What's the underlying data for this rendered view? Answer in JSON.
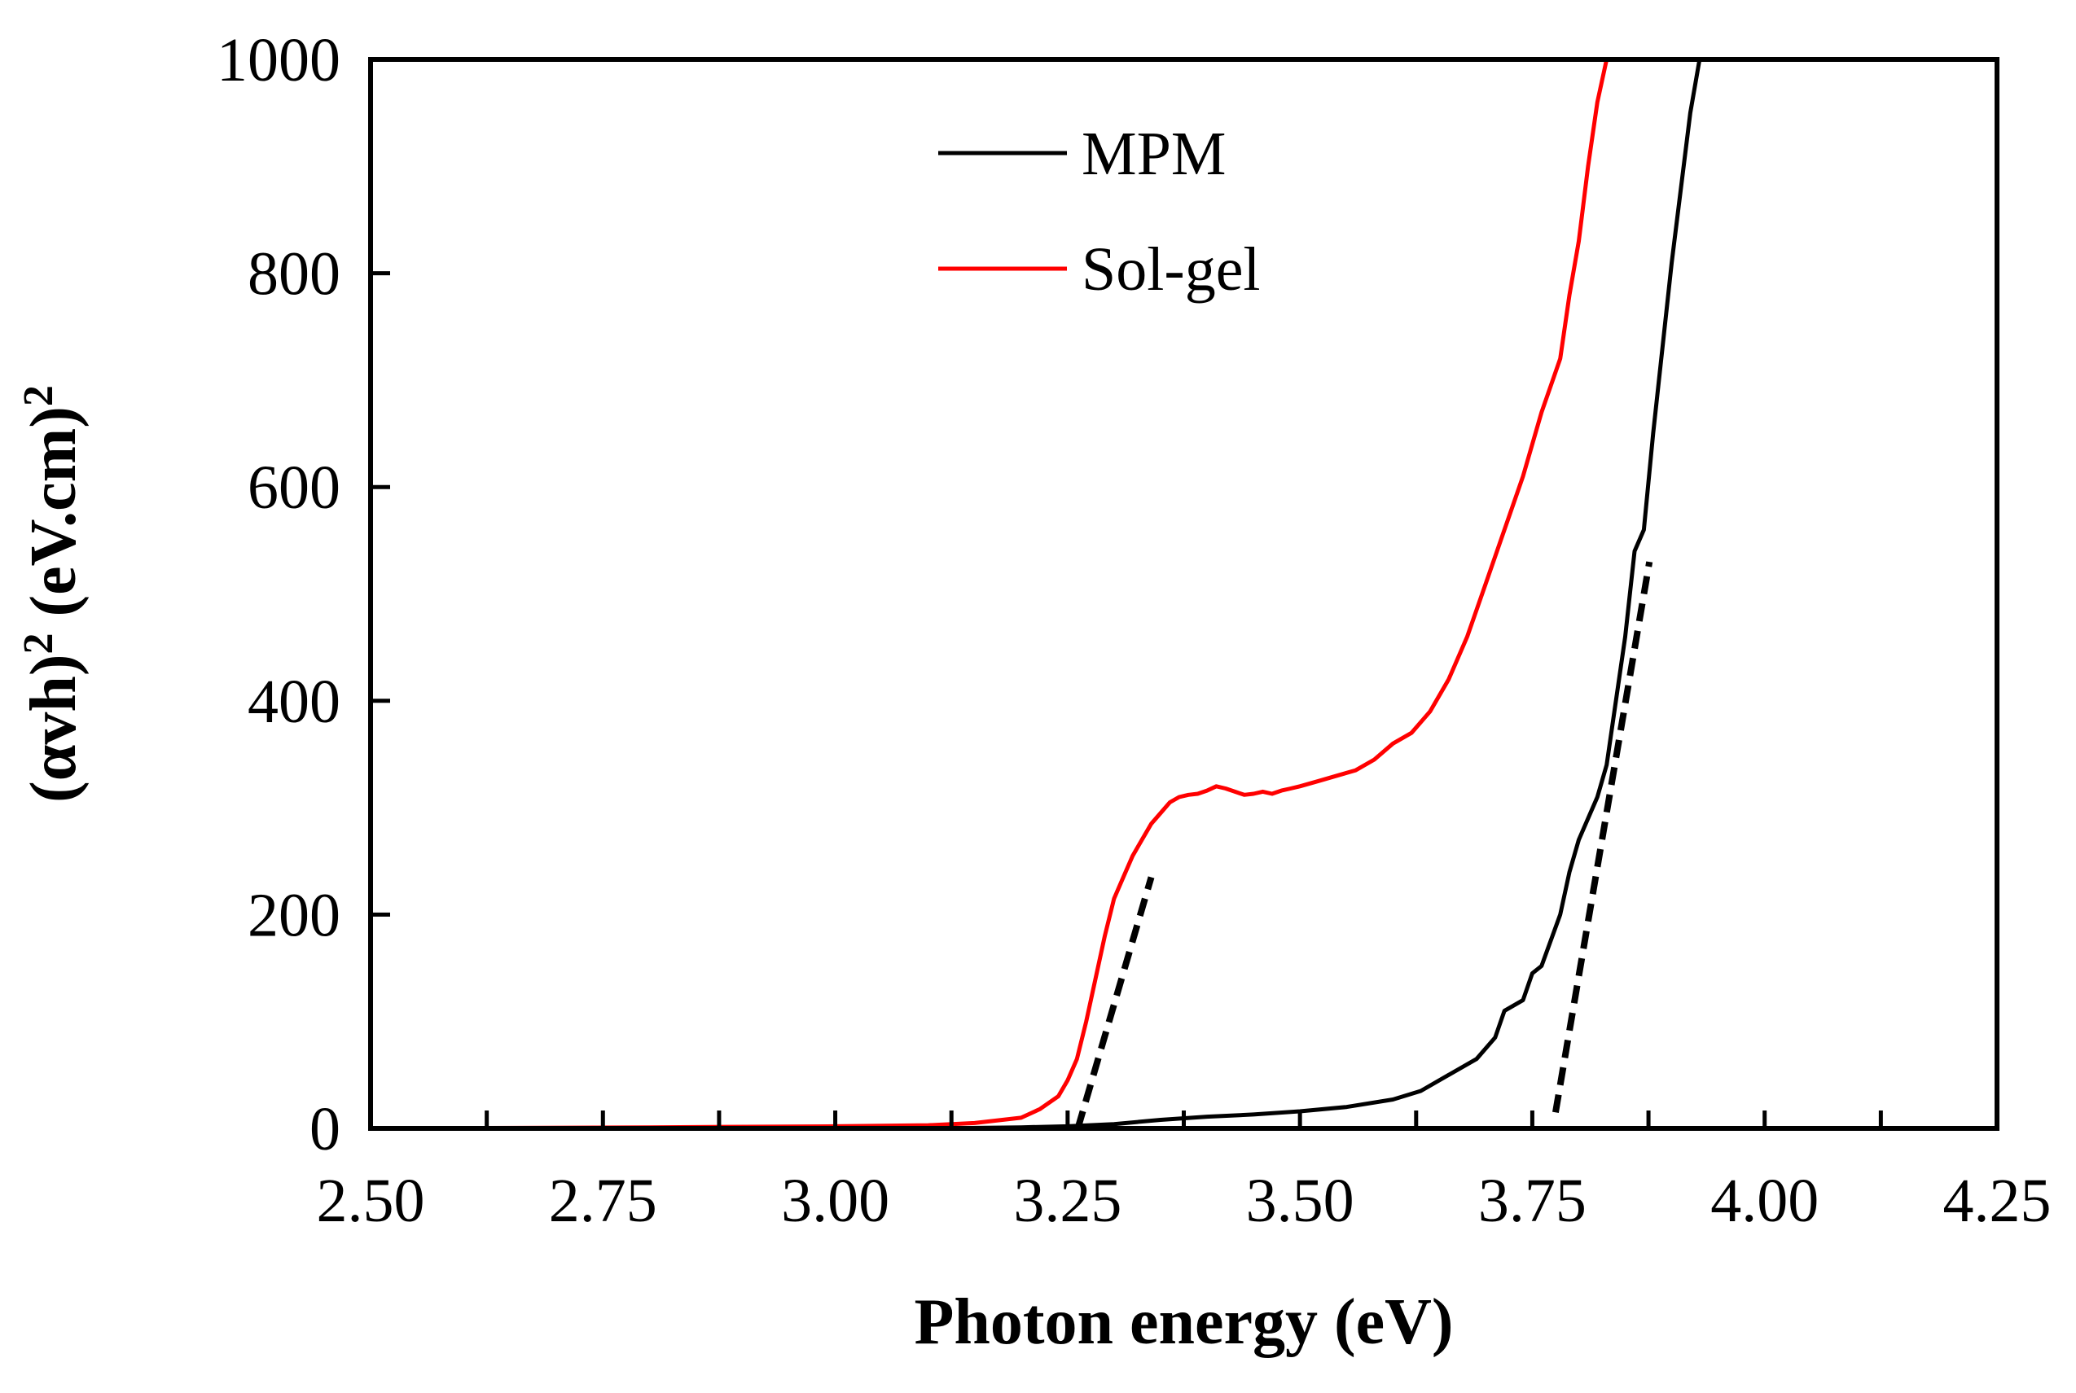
{
  "chart_data": {
    "type": "line",
    "xlabel": "Photon energy (eV)",
    "ylabel_parts": [
      "(αvh)",
      "2",
      " (eV.cm)",
      "2"
    ],
    "xlim": [
      2.5,
      4.25
    ],
    "ylim": [
      0,
      1000
    ],
    "x_ticks": [
      2.5,
      2.75,
      3.0,
      3.25,
      3.5,
      3.75,
      4.0,
      4.25
    ],
    "x_tick_labels": [
      "2.50",
      "2.75",
      "3.00",
      "3.25",
      "3.50",
      "3.75",
      "4.00",
      "4.25"
    ],
    "x_minor_step": 0.125,
    "y_ticks": [
      0,
      200,
      400,
      600,
      800,
      1000
    ],
    "y_tick_labels": [
      "0",
      "200",
      "400",
      "600",
      "800",
      "1000"
    ],
    "legend": {
      "position": "top-center",
      "entries": [
        {
          "label": "MPM",
          "color": "#000000"
        },
        {
          "label": "Sol-gel",
          "color": "#ff0000"
        }
      ]
    },
    "series": [
      {
        "name": "MPM",
        "color": "#000000",
        "x": [
          2.5,
          2.8,
          3.0,
          3.1,
          3.2,
          3.25,
          3.3,
          3.35,
          3.4,
          3.45,
          3.5,
          3.55,
          3.6,
          3.63,
          3.66,
          3.69,
          3.71,
          3.72,
          3.74,
          3.75,
          3.76,
          3.78,
          3.79,
          3.8,
          3.81,
          3.82,
          3.83,
          3.85,
          3.86,
          3.87,
          3.88,
          3.89,
          3.9,
          3.91,
          3.92,
          3.93
        ],
        "y": [
          0,
          0,
          0,
          0,
          1,
          2,
          4,
          8,
          11,
          13,
          16,
          20,
          27,
          35,
          50,
          65,
          85,
          110,
          120,
          145,
          152,
          200,
          240,
          270,
          290,
          310,
          340,
          460,
          540,
          560,
          650,
          730,
          810,
          880,
          950,
          1000
        ]
      },
      {
        "name": "Sol-gel",
        "color": "#ff0000",
        "x": [
          2.5,
          2.8,
          3.0,
          3.1,
          3.15,
          3.2,
          3.22,
          3.24,
          3.25,
          3.26,
          3.27,
          3.28,
          3.29,
          3.3,
          3.31,
          3.32,
          3.33,
          3.34,
          3.35,
          3.36,
          3.37,
          3.38,
          3.39,
          3.4,
          3.41,
          3.42,
          3.43,
          3.44,
          3.45,
          3.46,
          3.47,
          3.48,
          3.49,
          3.5,
          3.52,
          3.54,
          3.56,
          3.58,
          3.6,
          3.62,
          3.64,
          3.66,
          3.68,
          3.7,
          3.72,
          3.74,
          3.76,
          3.78,
          3.79,
          3.8,
          3.81,
          3.82,
          3.83
        ],
        "y": [
          0,
          1,
          2,
          3,
          5,
          10,
          18,
          30,
          45,
          65,
          100,
          140,
          180,
          215,
          235,
          255,
          270,
          285,
          295,
          305,
          310,
          312,
          313,
          316,
          320,
          318,
          315,
          312,
          313,
          315,
          313,
          316,
          318,
          320,
          325,
          330,
          335,
          345,
          360,
          370,
          390,
          420,
          460,
          510,
          560,
          610,
          670,
          720,
          780,
          830,
          900,
          960,
          1000
        ]
      }
    ],
    "tangents": [
      {
        "x": [
          3.261,
          3.34
        ],
        "y": [
          0,
          235
        ],
        "color": "#000000",
        "style": "dashed"
      },
      {
        "x": [
          3.775,
          3.876
        ],
        "y": [
          15,
          530
        ],
        "color": "#000000",
        "style": "dashed"
      }
    ]
  }
}
